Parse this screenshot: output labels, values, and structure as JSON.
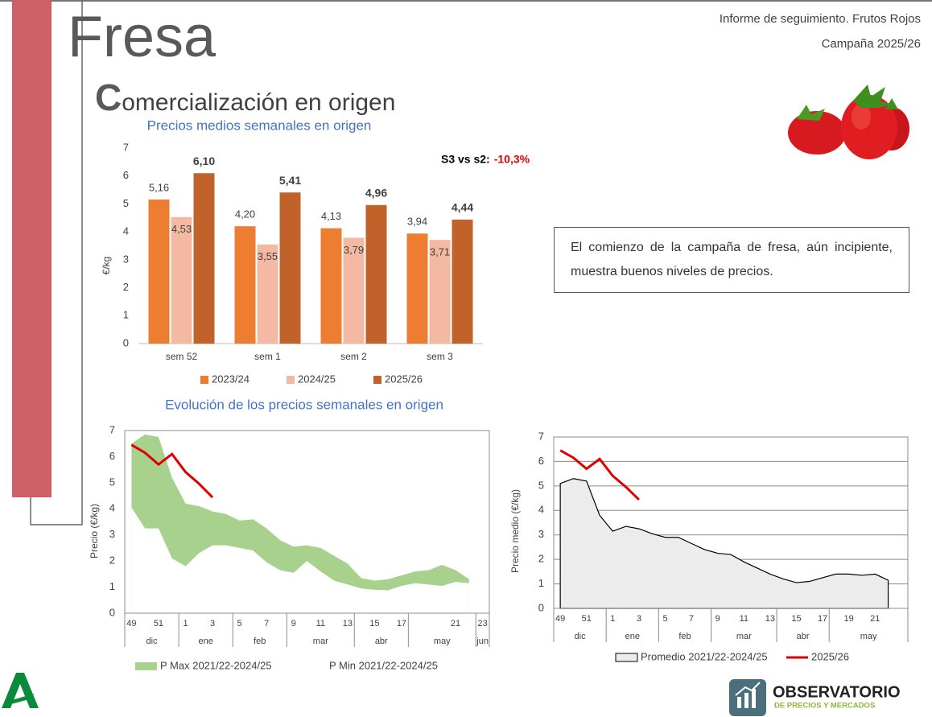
{
  "header": {
    "product": "Fresa",
    "section_title": "Comercialización en origen",
    "report": "Informe de seguimiento. Frutos Rojos",
    "campaign": "Campaña 2025/26"
  },
  "commentary": "El comienzo de la campaña de fresa, aún incipiente, muestra buenos niveles de precios.",
  "logo": {
    "title": "OBSERVATORIO",
    "subtitle": "DE PRECIOS Y MERCADOS"
  },
  "chart_data": [
    {
      "type": "bar",
      "title": "Precios medios semanales en origen",
      "y_label": "€/kg",
      "categories": [
        "sem 52",
        "sem 1",
        "sem 2",
        "sem 3"
      ],
      "series": [
        {
          "name": "2023/24",
          "color": "#ed7d31",
          "values": [
            5.16,
            4.2,
            4.13,
            3.94
          ],
          "value_labels": [
            "5,16",
            "4,20",
            "4,13",
            "3,94"
          ]
        },
        {
          "name": "2024/25",
          "color": "#f4b9a2",
          "values": [
            4.53,
            3.55,
            3.79,
            3.71
          ],
          "value_labels": [
            "4,53",
            "3,55",
            "3,79",
            "3,71"
          ]
        },
        {
          "name": "2025/26",
          "color": "#c0622a",
          "values": [
            6.1,
            5.41,
            4.96,
            4.44
          ],
          "value_labels": [
            "6,10",
            "5,41",
            "4,96",
            "4,44"
          ]
        }
      ],
      "ylim": [
        0,
        7
      ],
      "yticks": [
        0,
        1,
        2,
        3,
        4,
        5,
        6,
        7
      ],
      "grid": false,
      "annotation": {
        "text": "S3 vs s2:",
        "change": "-10,3%",
        "change_color": "#e00000"
      }
    },
    {
      "type": "band",
      "title": "Evolución de los precios semanales en origen",
      "y_label": "Precio (€/kg)",
      "categories": [
        "49",
        null,
        "51",
        null,
        "1",
        null,
        "3",
        null,
        "5",
        null,
        "7",
        null,
        "9",
        null,
        "11",
        null,
        "13",
        null,
        "15",
        null,
        "17",
        null,
        null,
        null,
        "21",
        null,
        "23"
      ],
      "months": [
        "dic",
        "ene",
        "feb",
        "mar",
        "abr",
        "may",
        "jun"
      ],
      "series": [
        {
          "name": "P Max 2021/22-2024/25",
          "kind": "area",
          "color": "#a9d18e",
          "values": [
            6.5,
            6.85,
            6.75,
            5.2,
            4.2,
            4.1,
            3.9,
            3.8,
            3.55,
            3.6,
            3.25,
            2.8,
            2.55,
            2.6,
            2.5,
            2.2,
            1.9,
            1.35,
            1.25,
            1.3,
            1.45,
            1.6,
            1.65,
            1.85,
            1.65,
            1.3,
            null
          ]
        },
        {
          "name": "P Min 2021/22-2024/25",
          "kind": "area",
          "color": "#ffffff",
          "values": [
            4.05,
            3.25,
            3.25,
            2.1,
            1.8,
            2.3,
            2.6,
            2.6,
            2.5,
            2.4,
            1.95,
            1.65,
            1.55,
            2.0,
            1.6,
            1.25,
            1.1,
            0.95,
            0.9,
            0.88,
            1.05,
            1.15,
            1.1,
            1.05,
            1.2,
            1.15,
            null
          ]
        },
        {
          "kind": "line",
          "color": "#e00000",
          "values": [
            6.45,
            6.15,
            5.7,
            6.1,
            5.41,
            4.96,
            4.44,
            null,
            null,
            null,
            null,
            null,
            null,
            null,
            null,
            null,
            null,
            null,
            null,
            null,
            null,
            null,
            null,
            null,
            null,
            null,
            null
          ]
        }
      ],
      "ylim": [
        0,
        7
      ],
      "yticks": [
        0,
        1,
        2,
        3,
        4,
        5,
        6,
        7
      ],
      "grid": false
    },
    {
      "type": "area",
      "y_label": "Precio medio (€/kg)",
      "categories": [
        "49",
        null,
        "51",
        null,
        "1",
        null,
        "3",
        null,
        "5",
        null,
        "7",
        null,
        "9",
        null,
        "11",
        null,
        "13",
        null,
        "15",
        null,
        "17",
        null,
        "19",
        null,
        "21",
        null,
        null
      ],
      "months": [
        "dic",
        "ene",
        "feb",
        "mar",
        "abr",
        "may"
      ],
      "series": [
        {
          "name": "Promedio 2021/22-2024/25",
          "kind": "area",
          "color": "#ececec",
          "values": [
            5.1,
            5.3,
            5.2,
            3.8,
            3.15,
            3.35,
            3.25,
            3.05,
            2.9,
            2.9,
            2.65,
            2.4,
            2.25,
            2.2,
            1.9,
            1.65,
            1.4,
            1.2,
            1.05,
            1.1,
            1.25,
            1.4,
            1.4,
            1.35,
            1.4,
            1.15,
            null
          ]
        },
        {
          "name": "2025/26",
          "kind": "line",
          "color": "#e00000",
          "values": [
            6.45,
            6.15,
            5.7,
            6.1,
            5.41,
            4.96,
            4.44,
            null,
            null,
            null,
            null,
            null,
            null,
            null,
            null,
            null,
            null,
            null,
            null,
            null,
            null,
            null,
            null,
            null,
            null,
            null,
            null
          ]
        }
      ],
      "ylim": [
        0,
        7
      ],
      "yticks": [
        0,
        1,
        2,
        3,
        4,
        5,
        6,
        7
      ],
      "grid": true
    }
  ]
}
